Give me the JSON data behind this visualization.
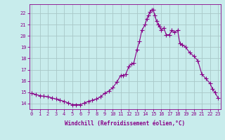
{
  "x": [
    0,
    0.5,
    1,
    1.5,
    2,
    2.5,
    3,
    3.5,
    4,
    4.5,
    5,
    5.5,
    6,
    6.5,
    7,
    7.5,
    8,
    8.5,
    9,
    9.5,
    10,
    10.5,
    11,
    11.3,
    11.6,
    12,
    12.3,
    12.6,
    13,
    13.3,
    13.6,
    14,
    14.2,
    14.4,
    14.6,
    14.8,
    15,
    15.2,
    15.4,
    15.6,
    15.8,
    16,
    16.3,
    16.6,
    17,
    17.3,
    17.6,
    18,
    18.3,
    18.6,
    19,
    19.5,
    20,
    20.5,
    21,
    21.5,
    22,
    22.3,
    22.6,
    23
  ],
  "y": [
    14.9,
    14.8,
    14.7,
    14.65,
    14.6,
    14.5,
    14.4,
    14.3,
    14.2,
    14.05,
    13.9,
    13.9,
    13.9,
    14.05,
    14.2,
    14.3,
    14.4,
    14.6,
    14.9,
    15.1,
    15.4,
    15.9,
    16.5,
    16.5,
    16.6,
    17.3,
    17.5,
    17.6,
    18.8,
    19.5,
    20.5,
    21.0,
    21.5,
    21.8,
    22.1,
    22.3,
    22.3,
    21.8,
    21.3,
    21.0,
    20.8,
    20.5,
    20.7,
    20.1,
    20.1,
    20.5,
    20.3,
    20.5,
    19.3,
    19.2,
    19.0,
    18.5,
    18.2,
    17.8,
    16.6,
    16.2,
    15.8,
    15.3,
    15.0,
    14.5
  ],
  "line_color": "#880088",
  "marker": "+",
  "marker_size": 4,
  "bg_color": "#c8ecec",
  "grid_color": "#a8c8c8",
  "xlabel": "Windchill (Refroidissement éolien,°C)",
  "xlabel_color": "#880088",
  "tick_color": "#880088",
  "ylim": [
    13.5,
    22.8
  ],
  "xlim": [
    -0.3,
    23.3
  ],
  "yticks": [
    14,
    15,
    16,
    17,
    18,
    19,
    20,
    21,
    22
  ],
  "xticks": [
    0,
    1,
    2,
    3,
    4,
    5,
    6,
    7,
    8,
    9,
    10,
    11,
    12,
    13,
    14,
    15,
    16,
    17,
    18,
    19,
    20,
    21,
    22,
    23
  ]
}
